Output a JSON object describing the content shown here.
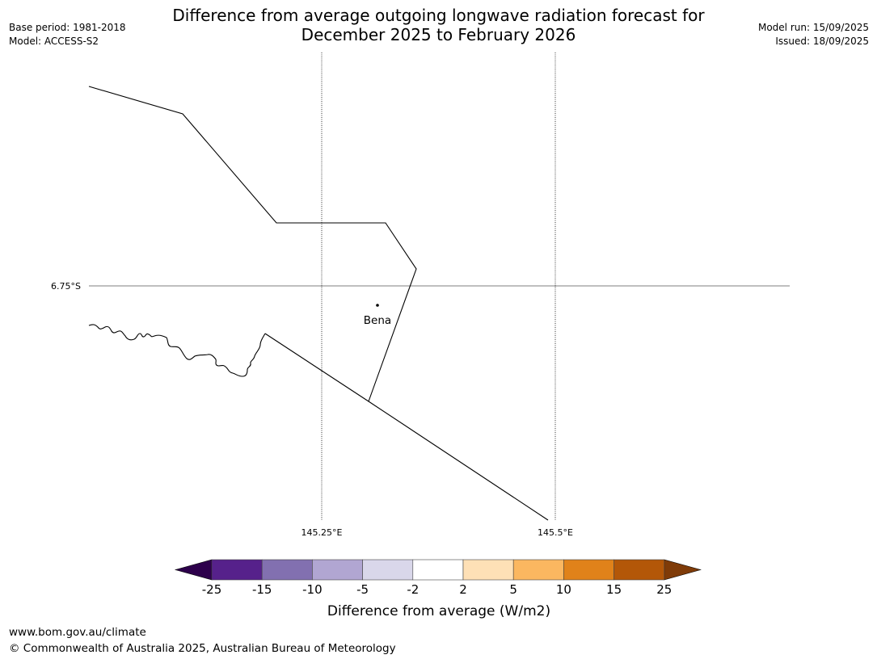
{
  "title": {
    "line1": "Difference from average outgoing longwave radiation forecast for",
    "line2": "December 2025 to February 2026"
  },
  "meta_left": {
    "base_period": "Base period: 1981-2018",
    "model": "Model: ACCESS-S2"
  },
  "meta_right": {
    "model_run": "Model run: 15/09/2025",
    "issued": "Issued: 18/09/2025"
  },
  "map": {
    "lat_labels": [
      "6.75°S"
    ],
    "lon_labels": [
      "145.25°E",
      "145.5°E"
    ],
    "places": [
      {
        "name": "Bena"
      }
    ]
  },
  "colorbar": {
    "title": "Difference from average (W/m2)",
    "tick_labels": [
      "-25",
      "-15",
      "-10",
      "-5",
      "-2",
      "2",
      "5",
      "10",
      "15",
      "25"
    ],
    "colors": [
      "#56218b",
      "#8270b0",
      "#b1a6d2",
      "#d9d7ea",
      "#ffffff",
      "#fee0b6",
      "#fbb760",
      "#e0821a",
      "#b35708"
    ],
    "extend_low_color": "#2d004b",
    "extend_high_color": "#7f3b08"
  },
  "footer": {
    "url": "www.bom.gov.au/climate",
    "copyright": "© Commonwealth of Australia 2025, Australian Bureau of Meteorology"
  }
}
